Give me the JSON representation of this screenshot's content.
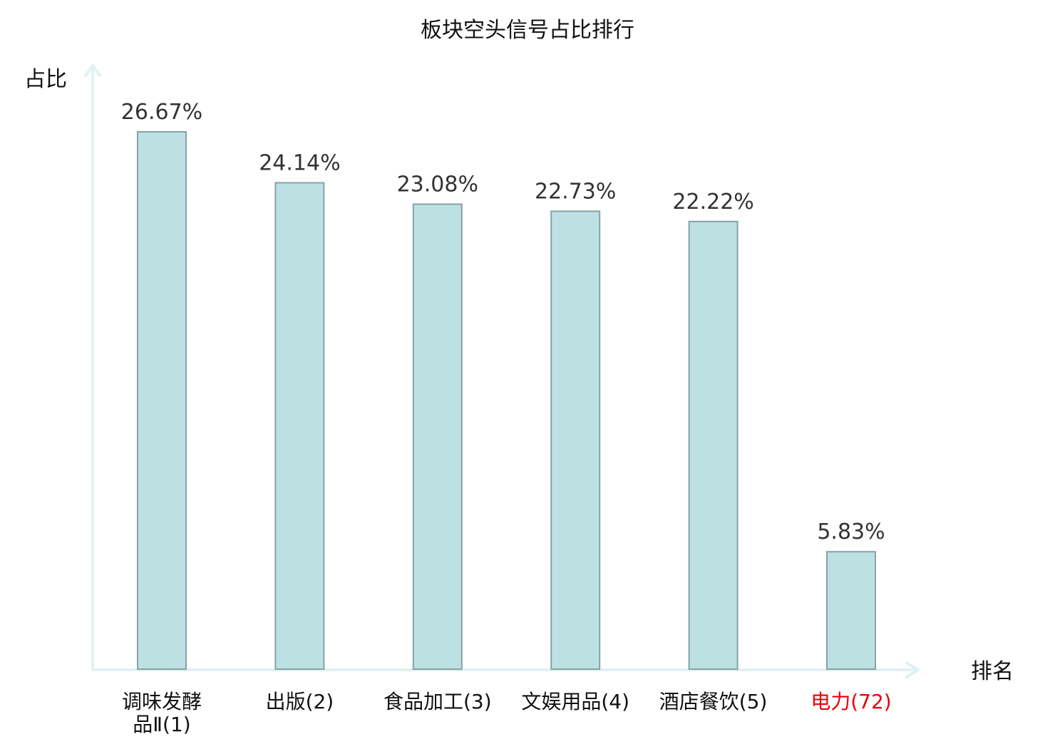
{
  "chart_data": {
    "type": "bar",
    "title": "板块空头信号占比排行",
    "xlabel": "排名",
    "ylabel": "占比",
    "categories": [
      {
        "lines": [
          "调味发酵",
          "品Ⅱ(1)"
        ],
        "highlight": false
      },
      {
        "lines": [
          "出版(2)"
        ],
        "highlight": false
      },
      {
        "lines": [
          "食品加工(3)"
        ],
        "highlight": false
      },
      {
        "lines": [
          "文娱用品(4)"
        ],
        "highlight": false
      },
      {
        "lines": [
          "酒店餐饮(5)"
        ],
        "highlight": false
      },
      {
        "lines": [
          "电力(72)"
        ],
        "highlight": true
      }
    ],
    "values": [
      26.67,
      24.14,
      23.08,
      22.73,
      22.22,
      5.83
    ],
    "value_labels": [
      "26.67%",
      "24.14%",
      "23.08%",
      "22.73%",
      "22.22%",
      "5.83%"
    ],
    "unit": "%",
    "ylim": [
      0,
      26.67
    ],
    "grid": false,
    "legend": "none",
    "colors": {
      "bar_fill": "#bde0e3",
      "bar_stroke": "#86a3a6",
      "axis": "#e0f2f1",
      "text": "#333333",
      "label_text": "#111111",
      "highlight_text": "#e8000b"
    }
  }
}
